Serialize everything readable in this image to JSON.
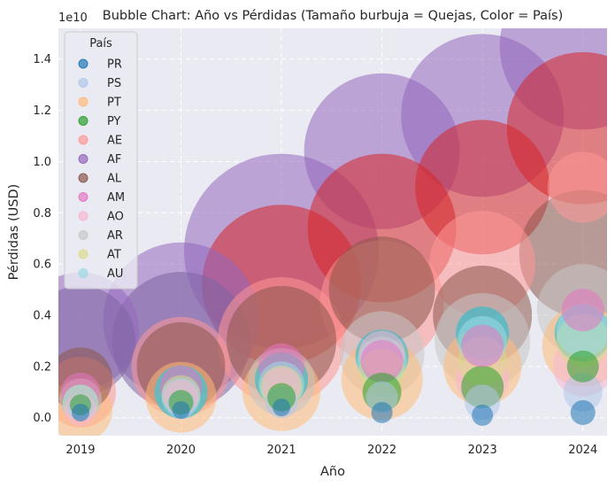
{
  "chart_data": {
    "type": "scatter",
    "title": "Bubble Chart: Año vs Pérdidas (Tamaño burbuja = Quejas, Color = País)",
    "xlabel": "Año",
    "ylabel": "Pérdidas (USD)",
    "y_offset_text": "1e10",
    "xlim": [
      2018.78,
      2024.24
    ],
    "ylim": [
      -0.07,
      1.52
    ],
    "y_scale_note": "values in units of 1e10 USD",
    "x_ticks": [
      "2019",
      "2020",
      "2021",
      "2022",
      "2023",
      "2024"
    ],
    "y_ticks": [
      "0.0",
      "0.2",
      "0.4",
      "0.6",
      "0.8",
      "1.0",
      "1.2",
      "1.4"
    ],
    "grid": true,
    "legend_title": "País",
    "legend_placement": "top-left",
    "series": [
      {
        "name": "PR",
        "color": "#1f77b4",
        "points": [
          [
            2019,
            0.02,
            10
          ],
          [
            2020,
            0.03,
            10
          ],
          [
            2021,
            0.04,
            10
          ],
          [
            2022,
            0.02,
            12
          ],
          [
            2023,
            0.01,
            12
          ],
          [
            2024,
            0.02,
            14
          ]
        ]
      },
      {
        "name": "PS",
        "color": "#aec7e8",
        "points": [
          [
            2019,
            0.04,
            14
          ],
          [
            2020,
            0.05,
            16
          ],
          [
            2021,
            0.06,
            18
          ],
          [
            2022,
            0.08,
            18
          ],
          [
            2023,
            0.06,
            20
          ],
          [
            2024,
            0.1,
            22
          ]
        ]
      },
      {
        "name": "PT",
        "color": "#ffbb78",
        "points": [
          [
            2019,
            0.03,
            36
          ],
          [
            2020,
            0.08,
            40
          ],
          [
            2021,
            0.1,
            44
          ],
          [
            2022,
            0.15,
            46
          ],
          [
            2023,
            0.2,
            44
          ],
          [
            2024,
            0.28,
            46
          ]
        ]
      },
      {
        "name": "PY",
        "color": "#2ca02c",
        "points": [
          [
            2019,
            0.05,
            12
          ],
          [
            2020,
            0.06,
            14
          ],
          [
            2021,
            0.08,
            16
          ],
          [
            2022,
            0.1,
            22
          ],
          [
            2023,
            0.12,
            24
          ],
          [
            2024,
            0.2,
            18
          ]
        ]
      },
      {
        "name": "AE",
        "color": "#ff9896",
        "points": [
          [
            2019,
            0.1,
            40
          ],
          [
            2020,
            0.2,
            56
          ],
          [
            2021,
            0.3,
            72
          ],
          [
            2022,
            0.45,
            70
          ],
          [
            2023,
            0.6,
            60
          ],
          [
            2024,
            0.9,
            40
          ]
        ]
      },
      {
        "name": "AF",
        "color": "#9467bd",
        "points": [
          [
            2019,
            0.34,
            66
          ],
          [
            2020,
            0.38,
            88
          ],
          [
            2021,
            0.65,
            110
          ],
          [
            2022,
            1.04,
            88
          ],
          [
            2023,
            1.18,
            92
          ],
          [
            2024,
            1.45,
            94
          ]
        ]
      },
      {
        "name": "AL",
        "color": "#8c564b",
        "points": [
          [
            2019,
            0.15,
            36
          ],
          [
            2020,
            0.2,
            50
          ],
          [
            2021,
            0.3,
            62
          ],
          [
            2022,
            0.5,
            60
          ],
          [
            2023,
            0.4,
            56
          ],
          [
            2024,
            0.64,
            72
          ]
        ]
      },
      {
        "name": "AM",
        "color": "#e377c2",
        "points": [
          [
            2019,
            0.1,
            22
          ],
          [
            2020,
            0.12,
            24
          ],
          [
            2021,
            0.2,
            26
          ],
          [
            2022,
            0.22,
            24
          ],
          [
            2023,
            0.28,
            24
          ],
          [
            2024,
            0.42,
            24
          ]
        ]
      },
      {
        "name": "AO",
        "color": "#f7b6d2",
        "points": [
          [
            2019,
            0.03,
            18
          ],
          [
            2020,
            0.08,
            20
          ],
          [
            2021,
            0.12,
            22
          ],
          [
            2022,
            0.25,
            26
          ],
          [
            2023,
            0.15,
            30
          ],
          [
            2024,
            0.2,
            34
          ]
        ]
      },
      {
        "name": "AR",
        "color": "#c7c7c7",
        "points": [
          [
            2019,
            0.07,
            24
          ],
          [
            2020,
            0.1,
            30
          ],
          [
            2021,
            0.14,
            38
          ],
          [
            2022,
            0.25,
            48
          ],
          [
            2023,
            0.3,
            54
          ],
          [
            2024,
            0.42,
            52
          ]
        ]
      },
      {
        "name": "AT",
        "color": "#dbdb8d",
        "points": [
          [
            2019,
            0.06,
            20
          ],
          [
            2020,
            0.09,
            22
          ],
          [
            2021,
            0.12,
            24
          ],
          [
            2022,
            0.18,
            26
          ],
          [
            2023,
            0.22,
            28
          ],
          [
            2024,
            0.3,
            30
          ]
        ]
      },
      {
        "name": "AU",
        "color": "#9edae5",
        "points": [
          [
            2019,
            0.06,
            20
          ],
          [
            2020,
            0.08,
            22
          ],
          [
            2021,
            0.13,
            26
          ],
          [
            2022,
            0.22,
            28
          ],
          [
            2023,
            0.3,
            28
          ],
          [
            2024,
            0.34,
            30
          ]
        ]
      }
    ],
    "extra_bubbles": [
      {
        "series": "AE",
        "x": 2021,
        "y": 0.52,
        "r": 90,
        "color": "#d62728"
      },
      {
        "series": "AE",
        "x": 2022,
        "y": 0.74,
        "r": 84,
        "color": "#d62728"
      },
      {
        "series": "AE",
        "x": 2023,
        "y": 0.9,
        "r": 76,
        "color": "#d62728"
      },
      {
        "series": "AE",
        "x": 2024,
        "y": 1.13,
        "r": 86,
        "color": "#d62728"
      },
      {
        "series": "AF",
        "x": 2020,
        "y": 0.3,
        "r": 78,
        "color": "#8064a2"
      },
      {
        "series": "AF",
        "x": 2019,
        "y": 0.3,
        "r": 62,
        "color": "#8064a2"
      },
      {
        "series": "AU",
        "x": 2020,
        "y": 0.1,
        "r": 30,
        "color": "#17becf"
      },
      {
        "series": "AU",
        "x": 2021,
        "y": 0.15,
        "r": 30,
        "color": "#17becf"
      },
      {
        "series": "AU",
        "x": 2022,
        "y": 0.24,
        "r": 30,
        "color": "#17becf"
      },
      {
        "series": "AU",
        "x": 2023,
        "y": 0.33,
        "r": 30,
        "color": "#17becf"
      },
      {
        "series": "AU",
        "x": 2024,
        "y": 0.33,
        "r": 32,
        "color": "#17becf"
      }
    ]
  }
}
